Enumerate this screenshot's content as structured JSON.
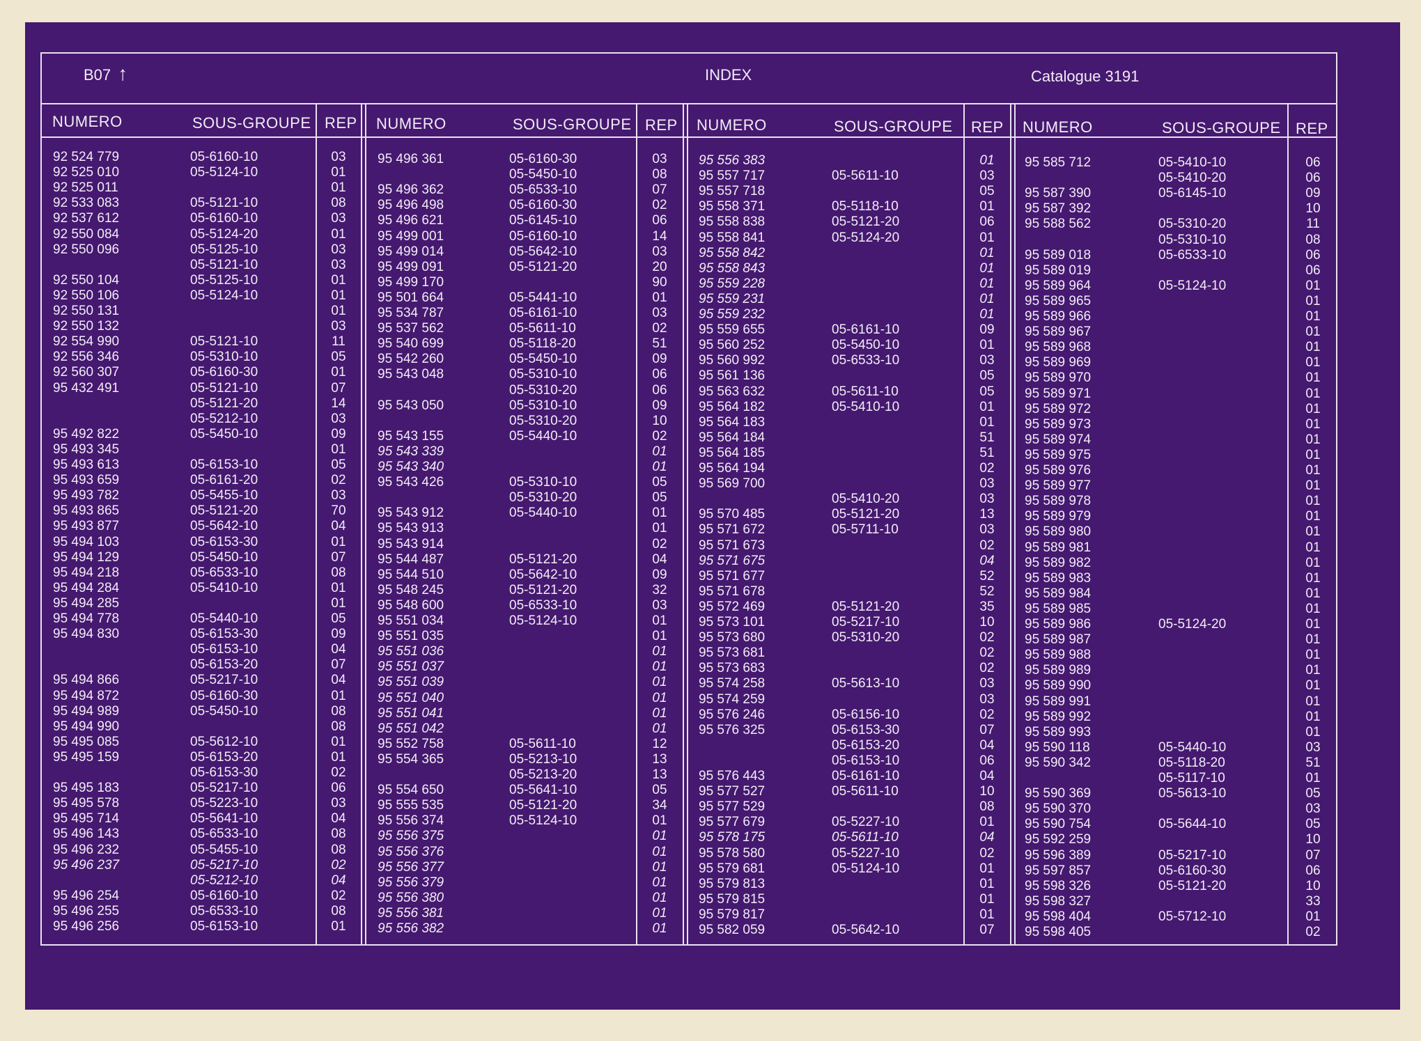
{
  "header": {
    "code": "B07",
    "arrow": "↑",
    "title": "INDEX",
    "catalogue": "Catalogue 3191"
  },
  "columns": {
    "numero": "NUMERO",
    "sous_groupe": "SOUS-GROUPE",
    "rep": "REP"
  },
  "panels": [
    {
      "rows": [
        [
          "92 524 779",
          "05-6160-10",
          "03"
        ],
        [
          "92 525 010",
          "05-5124-10",
          "01"
        ],
        [
          "92 525 011",
          "",
          "01"
        ],
        [
          "92 533 083",
          "05-5121-10",
          "08"
        ],
        [
          "92 537 612",
          "05-6160-10",
          "03"
        ],
        [
          "92 550 084",
          "05-5124-20",
          "01"
        ],
        [
          "92 550 096",
          "05-5125-10",
          "03"
        ],
        [
          "",
          "05-5121-10",
          "03"
        ],
        [
          "92 550 104",
          "05-5125-10",
          "01"
        ],
        [
          "92 550 106",
          "05-5124-10",
          "01"
        ],
        [
          "92 550 131",
          "",
          "01"
        ],
        [
          "92 550 132",
          "",
          "03"
        ],
        [
          "92 554 990",
          "05-5121-10",
          "11"
        ],
        [
          "92 556 346",
          "05-5310-10",
          "05"
        ],
        [
          "92 560 307",
          "05-6160-30",
          "01"
        ],
        [
          "95 432 491",
          "05-5121-10",
          "07"
        ],
        [
          "",
          "05-5121-20",
          "14"
        ],
        [
          "",
          "05-5212-10",
          "03"
        ],
        [
          "95 492 822",
          "05-5450-10",
          "09"
        ],
        [
          "95 493 345",
          "",
          "01"
        ],
        [
          "95 493 613",
          "05-6153-10",
          "05"
        ],
        [
          "95 493 659",
          "05-6161-20",
          "02"
        ],
        [
          "95 493 782",
          "05-5455-10",
          "03"
        ],
        [
          "95 493 865",
          "05-5121-20",
          "70"
        ],
        [
          "95 493 877",
          "05-5642-10",
          "04"
        ],
        [
          "95 494 103",
          "05-6153-30",
          "01"
        ],
        [
          "95 494 129",
          "05-5450-10",
          "07"
        ],
        [
          "95 494 218",
          "05-6533-10",
          "08"
        ],
        [
          "95 494 284",
          "05-5410-10",
          "01"
        ],
        [
          "95 494 285",
          "",
          "01"
        ],
        [
          "95 494 778",
          "05-5440-10",
          "05"
        ],
        [
          "95 494 830",
          "05-6153-30",
          "09"
        ],
        [
          "",
          "05-6153-10",
          "04"
        ],
        [
          "",
          "05-6153-20",
          "07"
        ],
        [
          "95 494 866",
          "05-5217-10",
          "04"
        ],
        [
          "95 494 872",
          "05-6160-30",
          "01"
        ],
        [
          "95 494 989",
          "05-5450-10",
          "08"
        ],
        [
          "95 494 990",
          "",
          "08"
        ],
        [
          "95 495 085",
          "05-5612-10",
          "01"
        ],
        [
          "95 495 159",
          "05-6153-20",
          "01"
        ],
        [
          "",
          "05-6153-30",
          "02"
        ],
        [
          "95 495 183",
          "05-5217-10",
          "06"
        ],
        [
          "95 495 578",
          "05-5223-10",
          "03"
        ],
        [
          "95 495 714",
          "05-5641-10",
          "04"
        ],
        [
          "95 496 143",
          "05-6533-10",
          "08"
        ],
        [
          "95 496 232",
          "05-5455-10",
          "08"
        ],
        [
          "95 496 237",
          "05-5217-10",
          "02"
        ],
        [
          "",
          "05-5212-10",
          "04"
        ],
        [
          "95 496 254",
          "05-6160-10",
          "02"
        ],
        [
          "95 496 255",
          "05-6533-10",
          "08"
        ],
        [
          "95 496 256",
          "05-6153-10",
          "01"
        ]
      ],
      "italic": [
        46,
        47
      ]
    },
    {
      "rows": [
        [
          "95 496 361",
          "05-6160-30",
          "03"
        ],
        [
          "",
          "05-5450-10",
          "08"
        ],
        [
          "95 496 362",
          "05-6533-10",
          "07"
        ],
        [
          "95 496 498",
          "05-6160-30",
          "02"
        ],
        [
          "95 496 621",
          "05-6145-10",
          "06"
        ],
        [
          "95 499 001",
          "05-6160-10",
          "14"
        ],
        [
          "95 499 014",
          "05-5642-10",
          "03"
        ],
        [
          "95 499 091",
          "05-5121-20",
          "20"
        ],
        [
          "95 499 170",
          "",
          "90"
        ],
        [
          "95 501 664",
          "05-5441-10",
          "01"
        ],
        [
          "95 534 787",
          "05-6161-10",
          "03"
        ],
        [
          "95 537 562",
          "05-5611-10",
          "02"
        ],
        [
          "95 540 699",
          "05-5118-20",
          "51"
        ],
        [
          "95 542 260",
          "05-5450-10",
          "09"
        ],
        [
          "95 543 048",
          "05-5310-10",
          "06"
        ],
        [
          "",
          "05-5310-20",
          "06"
        ],
        [
          "95 543 050",
          "05-5310-10",
          "09"
        ],
        [
          "",
          "05-5310-20",
          "10"
        ],
        [
          "95 543 155",
          "05-5440-10",
          "02"
        ],
        [
          "95 543 339",
          "",
          "01"
        ],
        [
          "95 543 340",
          "",
          "01"
        ],
        [
          "95 543 426",
          "05-5310-10",
          "05"
        ],
        [
          "",
          "05-5310-20",
          "05"
        ],
        [
          "95 543 912",
          "05-5440-10",
          "01"
        ],
        [
          "95 543 913",
          "",
          "01"
        ],
        [
          "95 543 914",
          "",
          "02"
        ],
        [
          "95 544 487",
          "05-5121-20",
          "04"
        ],
        [
          "95 544 510",
          "05-5642-10",
          "09"
        ],
        [
          "95 548 245",
          "05-5121-20",
          "32"
        ],
        [
          "95 548 600",
          "05-6533-10",
          "03"
        ],
        [
          "95 551 034",
          "05-5124-10",
          "01"
        ],
        [
          "95 551 035",
          "",
          "01"
        ],
        [
          "95 551 036",
          "",
          "01"
        ],
        [
          "95 551 037",
          "",
          "01"
        ],
        [
          "95 551 039",
          "",
          "01"
        ],
        [
          "95 551 040",
          "",
          "01"
        ],
        [
          "95 551 041",
          "",
          "01"
        ],
        [
          "95 551 042",
          "",
          "01"
        ],
        [
          "95 552 758",
          "05-5611-10",
          "12"
        ],
        [
          "95 554 365",
          "05-5213-10",
          "13"
        ],
        [
          "",
          "05-5213-20",
          "13"
        ],
        [
          "95 554 650",
          "05-5641-10",
          "05"
        ],
        [
          "95 555 535",
          "05-5121-20",
          "34"
        ],
        [
          "95 556 374",
          "05-5124-10",
          "01"
        ],
        [
          "95 556 375",
          "",
          "01"
        ],
        [
          "95 556 376",
          "",
          "01"
        ],
        [
          "95 556 377",
          "",
          "01"
        ],
        [
          "95 556 379",
          "",
          "01"
        ],
        [
          "95 556 380",
          "",
          "01"
        ],
        [
          "95 556 381",
          "",
          "01"
        ],
        [
          "95 556 382",
          "",
          "01"
        ]
      ],
      "italic": [
        19,
        20,
        32,
        33,
        34,
        35,
        36,
        37,
        44,
        45,
        46,
        47,
        48,
        49,
        50
      ]
    },
    {
      "rows": [
        [
          "95 556 383",
          "",
          "01"
        ],
        [
          "95 557 717",
          "05-5611-10",
          "03"
        ],
        [
          "95 557 718",
          "",
          "05"
        ],
        [
          "95 558 371",
          "05-5118-10",
          "01"
        ],
        [
          "95 558 838",
          "05-5121-20",
          "06"
        ],
        [
          "95 558 841",
          "05-5124-20",
          "01"
        ],
        [
          "95 558 842",
          "",
          "01"
        ],
        [
          "95 558 843",
          "",
          "01"
        ],
        [
          "95 559 228",
          "",
          "01"
        ],
        [
          "95 559 231",
          "",
          "01"
        ],
        [
          "95 559 232",
          "",
          "01"
        ],
        [
          "95 559 655",
          "05-6161-10",
          "09"
        ],
        [
          "95 560 252",
          "05-5450-10",
          "01"
        ],
        [
          "95 560 992",
          "05-6533-10",
          "03"
        ],
        [
          "95 561 136",
          "",
          "05"
        ],
        [
          "95 563 632",
          "05-5611-10",
          "05"
        ],
        [
          "95 564 182",
          "05-5410-10",
          "01"
        ],
        [
          "95 564 183",
          "",
          "01"
        ],
        [
          "95 564 184",
          "",
          "51"
        ],
        [
          "95 564 185",
          "",
          "51"
        ],
        [
          "95 564 194",
          "",
          "02"
        ],
        [
          "95 569 700",
          "",
          "03"
        ],
        [
          "",
          "05-5410-20",
          "03"
        ],
        [
          "95 570 485",
          "05-5121-20",
          "13"
        ],
        [
          "95 571 672",
          "05-5711-10",
          "03"
        ],
        [
          "95 571 673",
          "",
          "02"
        ],
        [
          "95 571 675",
          "",
          "04"
        ],
        [
          "95 571 677",
          "",
          "52"
        ],
        [
          "95 571 678",
          "",
          "52"
        ],
        [
          "95 572 469",
          "05-5121-20",
          "35"
        ],
        [
          "95 573 101",
          "05-5217-10",
          "10"
        ],
        [
          "95 573 680",
          "05-5310-20",
          "02"
        ],
        [
          "95 573 681",
          "",
          "02"
        ],
        [
          "95 573 683",
          "",
          "02"
        ],
        [
          "95 574 258",
          "05-5613-10",
          "03"
        ],
        [
          "95 574 259",
          "",
          "03"
        ],
        [
          "95 576 246",
          "05-6156-10",
          "02"
        ],
        [
          "95 576 325",
          "05-6153-30",
          "07"
        ],
        [
          "",
          "05-6153-20",
          "04"
        ],
        [
          "",
          "05-6153-10",
          "06"
        ],
        [
          "95 576 443",
          "05-6161-10",
          "04"
        ],
        [
          "95 577 527",
          "05-5611-10",
          "10"
        ],
        [
          "95 577 529",
          "",
          "08"
        ],
        [
          "95 577 679",
          "05-5227-10",
          "01"
        ],
        [
          "95 578 175",
          "05-5611-10",
          "04"
        ],
        [
          "95 578 580",
          "05-5227-10",
          "02"
        ],
        [
          "95 579 681",
          "05-5124-10",
          "01"
        ],
        [
          "95 579 813",
          "",
          "01"
        ],
        [
          "95 579 815",
          "",
          "01"
        ],
        [
          "95 579 817",
          "",
          "01"
        ],
        [
          "95 582 059",
          "05-5642-10",
          "07"
        ]
      ],
      "italic": [
        0,
        6,
        7,
        8,
        9,
        10,
        26,
        44
      ]
    },
    {
      "rows": [
        [
          "95 585 712",
          "05-5410-10",
          "06"
        ],
        [
          "",
          "05-5410-20",
          "06"
        ],
        [
          "95 587 390",
          "05-6145-10",
          "09"
        ],
        [
          "95 587 392",
          "",
          "10"
        ],
        [
          "95 588 562",
          "05-5310-20",
          "11"
        ],
        [
          "",
          "05-5310-10",
          "08"
        ],
        [
          "95 589 018",
          "05-6533-10",
          "06"
        ],
        [
          "95 589 019",
          "",
          "06"
        ],
        [
          "95 589 964",
          "05-5124-10",
          "01"
        ],
        [
          "95 589 965",
          "",
          "01"
        ],
        [
          "95 589 966",
          "",
          "01"
        ],
        [
          "95 589 967",
          "",
          "01"
        ],
        [
          "95 589 968",
          "",
          "01"
        ],
        [
          "95 589 969",
          "",
          "01"
        ],
        [
          "95 589 970",
          "",
          "01"
        ],
        [
          "95 589 971",
          "",
          "01"
        ],
        [
          "95 589 972",
          "",
          "01"
        ],
        [
          "95 589 973",
          "",
          "01"
        ],
        [
          "95 589 974",
          "",
          "01"
        ],
        [
          "95 589 975",
          "",
          "01"
        ],
        [
          "95 589 976",
          "",
          "01"
        ],
        [
          "95 589 977",
          "",
          "01"
        ],
        [
          "95 589 978",
          "",
          "01"
        ],
        [
          "95 589 979",
          "",
          "01"
        ],
        [
          "95 589 980",
          "",
          "01"
        ],
        [
          "95 589 981",
          "",
          "01"
        ],
        [
          "95 589 982",
          "",
          "01"
        ],
        [
          "95 589 983",
          "",
          "01"
        ],
        [
          "95 589 984",
          "",
          "01"
        ],
        [
          "95 589 985",
          "",
          "01"
        ],
        [
          "95 589 986",
          "05-5124-20",
          "01"
        ],
        [
          "95 589 987",
          "",
          "01"
        ],
        [
          "95 589 988",
          "",
          "01"
        ],
        [
          "95 589 989",
          "",
          "01"
        ],
        [
          "95 589 990",
          "",
          "01"
        ],
        [
          "95 589 991",
          "",
          "01"
        ],
        [
          "95 589 992",
          "",
          "01"
        ],
        [
          "95 589 993",
          "",
          "01"
        ],
        [
          "95 590 118",
          "05-5440-10",
          "03"
        ],
        [
          "95 590 342",
          "05-5118-20",
          "51"
        ],
        [
          "",
          "05-5117-10",
          "01"
        ],
        [
          "95 590 369",
          "05-5613-10",
          "05"
        ],
        [
          "95 590 370",
          "",
          "03"
        ],
        [
          "95 590 754",
          "05-5644-10",
          "05"
        ],
        [
          "95 592 259",
          "",
          "10"
        ],
        [
          "95 596 389",
          "05-5217-10",
          "07"
        ],
        [
          "95 597 857",
          "05-6160-30",
          "06"
        ],
        [
          "95 598 326",
          "05-5121-20",
          "10"
        ],
        [
          "95 598 327",
          "",
          "33"
        ],
        [
          "95 598 404",
          "05-5712-10",
          "01"
        ],
        [
          "95 598 405",
          "",
          "02"
        ]
      ],
      "italic": []
    }
  ]
}
